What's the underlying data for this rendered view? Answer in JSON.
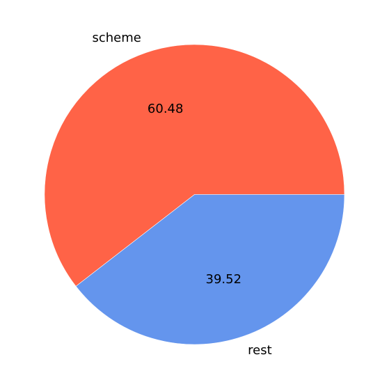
{
  "chart_data": {
    "type": "pie",
    "slices": [
      {
        "label": "scheme",
        "value": 60.48,
        "value_label": "60.48",
        "color": "#ff6347"
      },
      {
        "label": "rest",
        "value": 39.52,
        "value_label": "39.52",
        "color": "#6495ed"
      }
    ],
    "start_angle_deg": 0,
    "direction": "counterclockwise",
    "legend": false
  }
}
